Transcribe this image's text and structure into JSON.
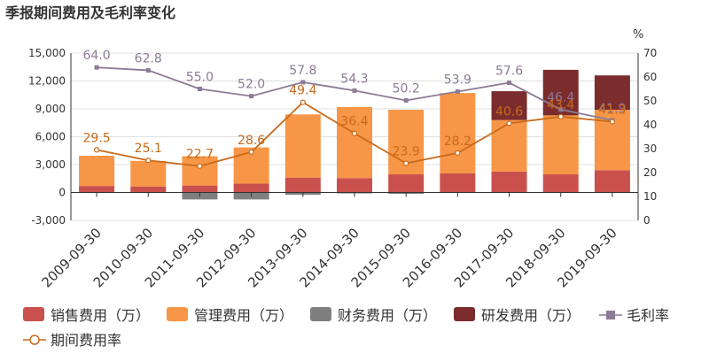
{
  "chart_data": {
    "type": "bar",
    "title": "季报期间费用及毛利率变化",
    "categories": [
      "2009-09-30",
      "2010-09-30",
      "2011-09-30",
      "2012-09-30",
      "2013-09-30",
      "2014-09-30",
      "2015-09-30",
      "2016-09-30",
      "2017-09-30",
      "2018-09-30",
      "2019-09-30"
    ],
    "stacked": true,
    "y_left": {
      "ticks": [
        "-3,000",
        "0",
        "3,000",
        "6,000",
        "9,000",
        "12,000",
        "15,000"
      ],
      "ylim": [
        -3000,
        15000
      ]
    },
    "y_right": {
      "label": "%",
      "ticks": [
        "0",
        "10",
        "20",
        "30",
        "40",
        "50",
        "60",
        "70"
      ],
      "ylim": [
        0,
        70
      ]
    },
    "grid": true,
    "legend_position": "bottom",
    "series": [
      {
        "name": "销售费用（万）",
        "kind": "bar",
        "color": "#c9504c",
        "values": [
          700,
          650,
          750,
          950,
          1600,
          1550,
          1950,
          2050,
          2250,
          1950,
          2400
        ]
      },
      {
        "name": "管理费用（万）",
        "kind": "bar",
        "color": "#f79646",
        "values": [
          3250,
          2750,
          3150,
          3900,
          6800,
          7650,
          6950,
          8650,
          5550,
          6350,
          6500
        ]
      },
      {
        "name": "财务费用（万）",
        "kind": "bar",
        "color": "#7f7f7f",
        "values": [
          -50,
          -50,
          -750,
          -750,
          -250,
          -100,
          -150,
          -50,
          -50,
          -50,
          -50
        ]
      },
      {
        "name": "研发费用（万）",
        "kind": "bar",
        "color": "#7b2c2c",
        "values": [
          0,
          0,
          0,
          0,
          0,
          0,
          0,
          0,
          3100,
          4900,
          3700
        ]
      },
      {
        "name": "毛利率",
        "kind": "line",
        "axis": "right",
        "color": "#8c7b96",
        "values": [
          64.0,
          62.8,
          55.0,
          52.0,
          57.8,
          54.3,
          50.2,
          53.9,
          57.6,
          46.4,
          41.9
        ]
      },
      {
        "name": "期间费用率",
        "kind": "line",
        "axis": "right",
        "color": "#c86a1b",
        "values": [
          29.5,
          25.1,
          22.7,
          28.6,
          49.4,
          36.4,
          23.9,
          28.2,
          40.6,
          43.4,
          41.3
        ]
      }
    ]
  }
}
